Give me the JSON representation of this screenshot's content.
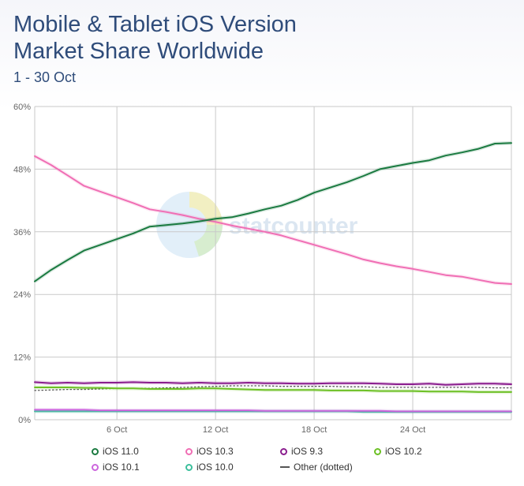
{
  "header": {
    "title_line1": "Mobile & Tablet iOS Version",
    "title_line2": "Market Share Worldwide",
    "subtitle": "1 - 30 Oct"
  },
  "watermark": {
    "text": "statcounter"
  },
  "chart_data": {
    "type": "line",
    "title": "Mobile & Tablet iOS Version Market Share Worldwide",
    "subtitle": "1 - 30 Oct",
    "x": [
      1,
      2,
      3,
      4,
      5,
      6,
      7,
      8,
      9,
      10,
      11,
      12,
      13,
      14,
      15,
      16,
      17,
      18,
      19,
      20,
      21,
      22,
      23,
      24,
      25,
      26,
      27,
      28,
      29,
      30
    ],
    "x_unit": "day of October",
    "x_ticks": [
      {
        "x": 6,
        "label": "6 Oct"
      },
      {
        "x": 12,
        "label": "12 Oct"
      },
      {
        "x": 18,
        "label": "18 Oct"
      },
      {
        "x": 24,
        "label": "24 Oct"
      }
    ],
    "ylim": [
      0,
      60
    ],
    "y_ticks": [
      0,
      12,
      24,
      36,
      48,
      60
    ],
    "y_tick_labels": [
      "0%",
      "12%",
      "24%",
      "36%",
      "48%",
      "60%"
    ],
    "grid": true,
    "legend_position": "bottom",
    "series": [
      {
        "name": "iOS 11.0",
        "color": "#1a7a40",
        "values": [
          26.5,
          28.7,
          30.6,
          32.4,
          33.5,
          34.6,
          35.7,
          37.0,
          37.3,
          37.6,
          38.0,
          38.5,
          38.8,
          39.5,
          40.3,
          41.0,
          42.1,
          43.5,
          44.5,
          45.5,
          46.7,
          48.0,
          48.6,
          49.2,
          49.7,
          50.6,
          51.2,
          51.9,
          52.9,
          53.0
        ]
      },
      {
        "name": "iOS 10.3",
        "color": "#f06eb4",
        "values": [
          50.5,
          48.8,
          46.8,
          44.8,
          43.7,
          42.6,
          41.5,
          40.3,
          39.8,
          39.2,
          38.5,
          37.9,
          37.2,
          36.6,
          36.0,
          35.3,
          34.4,
          33.5,
          32.6,
          31.7,
          30.7,
          30.0,
          29.4,
          28.9,
          28.3,
          27.7,
          27.4,
          26.8,
          26.2,
          26.0
        ]
      },
      {
        "name": "iOS 9.3",
        "color": "#8a1d8e",
        "values": [
          7.2,
          7.0,
          7.1,
          7.0,
          7.1,
          7.1,
          7.2,
          7.1,
          7.1,
          7.0,
          7.1,
          7.0,
          7.0,
          7.1,
          7.0,
          7.0,
          6.9,
          6.9,
          7.0,
          7.0,
          7.0,
          6.9,
          6.8,
          6.8,
          6.9,
          6.7,
          6.8,
          6.9,
          6.9,
          6.8
        ]
      },
      {
        "name": "iOS 10.2",
        "color": "#6cc024",
        "values": [
          6.2,
          6.2,
          6.2,
          6.1,
          6.1,
          6.0,
          6.0,
          5.9,
          5.9,
          5.9,
          6.0,
          6.0,
          5.9,
          5.8,
          5.7,
          5.7,
          5.7,
          5.7,
          5.6,
          5.6,
          5.6,
          5.5,
          5.5,
          5.5,
          5.4,
          5.4,
          5.4,
          5.3,
          5.3,
          5.3
        ]
      },
      {
        "name": "iOS 10.1",
        "color": "#cc66dd",
        "values": [
          1.9,
          1.9,
          1.9,
          1.9,
          1.8,
          1.8,
          1.8,
          1.8,
          1.8,
          1.8,
          1.8,
          1.8,
          1.8,
          1.8,
          1.7,
          1.7,
          1.7,
          1.7,
          1.7,
          1.7,
          1.7,
          1.7,
          1.6,
          1.6,
          1.6,
          1.6,
          1.6,
          1.6,
          1.6,
          1.6
        ]
      },
      {
        "name": "iOS 10.0",
        "color": "#3cbf9c",
        "values": [
          1.6,
          1.6,
          1.6,
          1.6,
          1.6,
          1.6,
          1.6,
          1.6,
          1.6,
          1.6,
          1.6,
          1.6,
          1.6,
          1.6,
          1.6,
          1.6,
          1.6,
          1.6,
          1.6,
          1.6,
          1.5,
          1.5,
          1.5,
          1.5,
          1.5,
          1.5,
          1.5,
          1.5,
          1.5,
          1.5
        ]
      },
      {
        "name": "Other (dotted)",
        "color": "#555555",
        "dotted": true,
        "values": [
          5.6,
          5.7,
          5.8,
          5.8,
          5.9,
          6.0,
          6.0,
          6.0,
          6.1,
          6.2,
          6.3,
          6.4,
          6.5,
          6.5,
          6.5,
          6.4,
          6.4,
          6.4,
          6.4,
          6.3,
          6.3,
          6.2,
          6.2,
          6.2,
          6.2,
          6.2,
          6.2,
          6.2,
          6.1,
          6.1
        ]
      }
    ]
  }
}
